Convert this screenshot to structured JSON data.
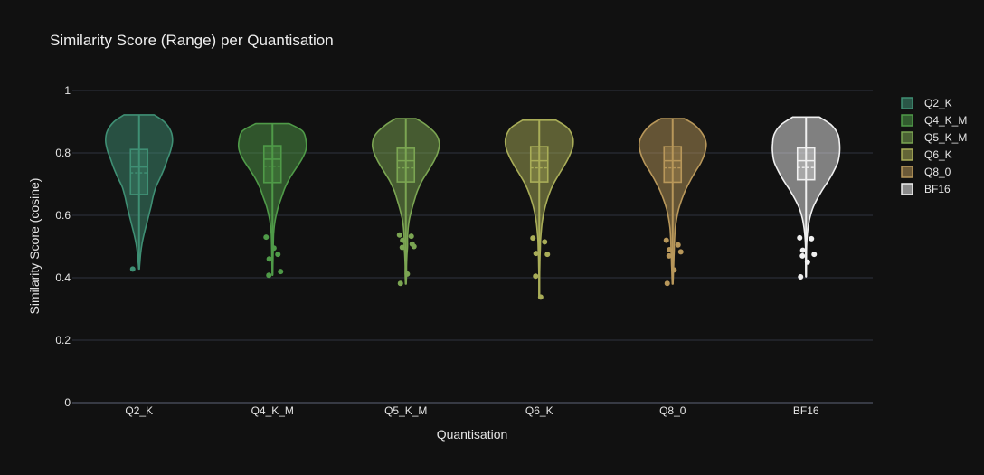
{
  "chart_data": {
    "type": "violin",
    "title": "Similarity Score (Range) per Quantisation",
    "xlabel": "Quantisation",
    "ylabel": "Similarity Score (cosine)",
    "ylim": [
      0,
      1
    ],
    "yticks": [
      0,
      0.2,
      0.4,
      0.6,
      0.8,
      1
    ],
    "ytick_labels": [
      "0",
      "0.2",
      "0.4",
      "0.6",
      "0.8",
      "1"
    ],
    "grid": true,
    "legend_position": "top-right",
    "categories": [
      "Q2_K",
      "Q4_K_M",
      "Q5_K_M",
      "Q6_K",
      "Q8_0",
      "BF16"
    ],
    "series": [
      {
        "name": "Q2_K",
        "color": "#3f8f74",
        "min": 0.428,
        "max": 0.922,
        "box": {
          "q1": 0.667,
          "median": 0.755,
          "q3": 0.811,
          "mean": 0.736
        },
        "outliers": [
          0.428
        ],
        "density": [
          [
            0.922,
            0.45
          ],
          [
            0.9,
            0.75
          ],
          [
            0.87,
            0.95
          ],
          [
            0.84,
            1.0
          ],
          [
            0.81,
            0.95
          ],
          [
            0.78,
            0.85
          ],
          [
            0.75,
            0.75
          ],
          [
            0.72,
            0.63
          ],
          [
            0.69,
            0.5
          ],
          [
            0.66,
            0.42
          ],
          [
            0.63,
            0.36
          ],
          [
            0.6,
            0.29
          ],
          [
            0.57,
            0.22
          ],
          [
            0.54,
            0.15
          ],
          [
            0.51,
            0.09
          ],
          [
            0.48,
            0.05
          ],
          [
            0.45,
            0.025
          ],
          [
            0.428,
            0.01
          ]
        ]
      },
      {
        "name": "Q4_K_M",
        "color": "#4f9a48",
        "min": 0.408,
        "max": 0.894,
        "box": {
          "q1": 0.705,
          "median": 0.78,
          "q3": 0.823,
          "mean": 0.757
        },
        "outliers": [
          0.53,
          0.475,
          0.46,
          0.42,
          0.408,
          0.495
        ],
        "density": [
          [
            0.894,
            0.5
          ],
          [
            0.87,
            0.9
          ],
          [
            0.84,
            1.0
          ],
          [
            0.81,
            1.0
          ],
          [
            0.78,
            0.88
          ],
          [
            0.75,
            0.7
          ],
          [
            0.72,
            0.52
          ],
          [
            0.69,
            0.38
          ],
          [
            0.66,
            0.28
          ],
          [
            0.63,
            0.18
          ],
          [
            0.6,
            0.11
          ],
          [
            0.57,
            0.06
          ],
          [
            0.54,
            0.035
          ],
          [
            0.51,
            0.025
          ],
          [
            0.48,
            0.02
          ],
          [
            0.45,
            0.015
          ],
          [
            0.42,
            0.01
          ],
          [
            0.408,
            0.005
          ]
        ]
      },
      {
        "name": "Q5_K_M",
        "color": "#7ba552",
        "min": 0.38,
        "max": 0.91,
        "box": {
          "q1": 0.707,
          "median": 0.775,
          "q3": 0.815,
          "mean": 0.752
        },
        "outliers": [
          0.537,
          0.533,
          0.52,
          0.5,
          0.497,
          0.412,
          0.382,
          0.508
        ],
        "density": [
          [
            0.91,
            0.3
          ],
          [
            0.89,
            0.6
          ],
          [
            0.86,
            0.9
          ],
          [
            0.83,
            1.0
          ],
          [
            0.8,
            0.95
          ],
          [
            0.77,
            0.82
          ],
          [
            0.74,
            0.65
          ],
          [
            0.71,
            0.48
          ],
          [
            0.68,
            0.35
          ],
          [
            0.65,
            0.26
          ],
          [
            0.62,
            0.18
          ],
          [
            0.59,
            0.11
          ],
          [
            0.56,
            0.07
          ],
          [
            0.53,
            0.05
          ],
          [
            0.5,
            0.05
          ],
          [
            0.47,
            0.03
          ],
          [
            0.44,
            0.02
          ],
          [
            0.41,
            0.02
          ],
          [
            0.38,
            0.01
          ]
        ]
      },
      {
        "name": "Q6_K",
        "color": "#a9ad58",
        "min": 0.338,
        "max": 0.905,
        "box": {
          "q1": 0.707,
          "median": 0.775,
          "q3": 0.82,
          "mean": 0.752
        },
        "outliers": [
          0.527,
          0.515,
          0.478,
          0.475,
          0.405,
          0.338
        ],
        "density": [
          [
            0.905,
            0.5
          ],
          [
            0.88,
            0.85
          ],
          [
            0.85,
            1.0
          ],
          [
            0.82,
            1.0
          ],
          [
            0.79,
            0.9
          ],
          [
            0.76,
            0.75
          ],
          [
            0.73,
            0.58
          ],
          [
            0.7,
            0.42
          ],
          [
            0.67,
            0.3
          ],
          [
            0.64,
            0.21
          ],
          [
            0.61,
            0.14
          ],
          [
            0.58,
            0.09
          ],
          [
            0.55,
            0.06
          ],
          [
            0.52,
            0.04
          ],
          [
            0.49,
            0.03
          ],
          [
            0.46,
            0.02
          ],
          [
            0.43,
            0.015
          ],
          [
            0.4,
            0.01
          ],
          [
            0.37,
            0.01
          ],
          [
            0.338,
            0.01
          ]
        ]
      },
      {
        "name": "Q8_0",
        "color": "#b8975a",
        "min": 0.38,
        "max": 0.91,
        "box": {
          "q1": 0.706,
          "median": 0.775,
          "q3": 0.82,
          "mean": 0.752
        },
        "outliers": [
          0.52,
          0.505,
          0.49,
          0.483,
          0.47,
          0.425,
          0.382
        ],
        "density": [
          [
            0.91,
            0.35
          ],
          [
            0.89,
            0.65
          ],
          [
            0.86,
            0.9
          ],
          [
            0.83,
            1.0
          ],
          [
            0.8,
            0.96
          ],
          [
            0.77,
            0.85
          ],
          [
            0.74,
            0.68
          ],
          [
            0.71,
            0.52
          ],
          [
            0.68,
            0.38
          ],
          [
            0.65,
            0.27
          ],
          [
            0.62,
            0.18
          ],
          [
            0.59,
            0.12
          ],
          [
            0.56,
            0.08
          ],
          [
            0.53,
            0.06
          ],
          [
            0.5,
            0.05
          ],
          [
            0.47,
            0.04
          ],
          [
            0.44,
            0.03
          ],
          [
            0.41,
            0.02
          ],
          [
            0.38,
            0.01
          ]
        ]
      },
      {
        "name": "BF16",
        "color": "#f0f0f0",
        "min": 0.403,
        "max": 0.915,
        "box": {
          "q1": 0.714,
          "median": 0.775,
          "q3": 0.816,
          "mean": 0.753
        },
        "outliers": [
          0.528,
          0.525,
          0.488,
          0.475,
          0.47,
          0.45,
          0.403
        ],
        "density": [
          [
            0.915,
            0.4
          ],
          [
            0.89,
            0.75
          ],
          [
            0.86,
            0.95
          ],
          [
            0.83,
            1.0
          ],
          [
            0.8,
            1.0
          ],
          [
            0.77,
            0.95
          ],
          [
            0.74,
            0.82
          ],
          [
            0.71,
            0.66
          ],
          [
            0.68,
            0.48
          ],
          [
            0.65,
            0.32
          ],
          [
            0.62,
            0.19
          ],
          [
            0.59,
            0.11
          ],
          [
            0.56,
            0.06
          ],
          [
            0.53,
            0.03
          ],
          [
            0.5,
            0.015
          ],
          [
            0.47,
            0.01
          ],
          [
            0.44,
            0.01
          ],
          [
            0.403,
            0.005
          ]
        ]
      }
    ]
  }
}
